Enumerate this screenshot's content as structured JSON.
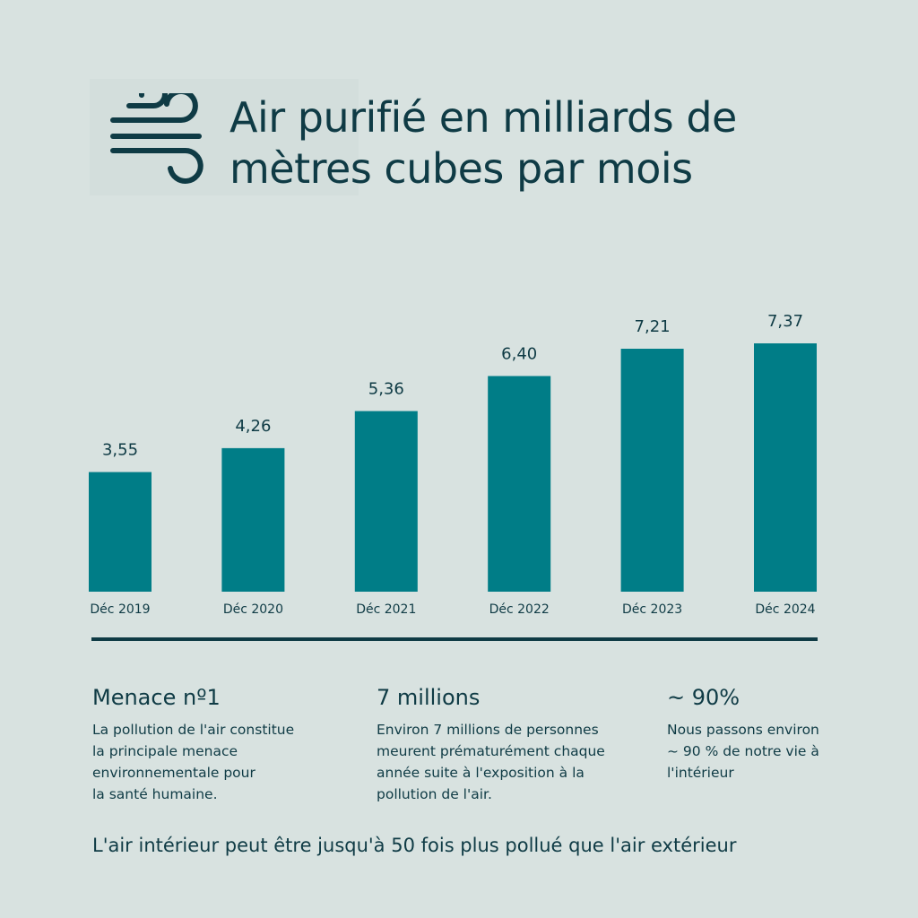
{
  "header": {
    "title_line1": "Air purifié en milliards de",
    "title_line2": "mètres cubes par mois",
    "icon": "wind-icon"
  },
  "chart_data": {
    "type": "bar",
    "title": "Air purifié en milliards de mètres cubes par mois",
    "categories": [
      "Déc 2019",
      "Déc 2020",
      "Déc 2021",
      "Déc 2022",
      "Déc 2023",
      "Déc 2024"
    ],
    "values": [
      3.55,
      4.26,
      5.36,
      6.4,
      7.21,
      7.37
    ],
    "value_labels": [
      "3,55",
      "4,26",
      "5,36",
      "6,40",
      "7,21",
      "7,37"
    ],
    "ylim": [
      0,
      7.37
    ],
    "grid": false,
    "legend": "none",
    "bar_color": "#007d87"
  },
  "stats": [
    {
      "heading": "Menace nº1",
      "lines": [
        "La pollution de l'air constitue",
        "la principale menace",
        "environnementale pour",
        "la santé humaine."
      ]
    },
    {
      "heading": "7 millions",
      "lines": [
        "Environ 7 millions de personnes",
        "meurent prématurément chaque",
        "année suite à l'exposition à la",
        "pollution de l'air."
      ]
    },
    {
      "heading": "~ 90%",
      "lines": [
        "Nous passons environ",
        "~ 90 % de notre vie à",
        "l'intérieur"
      ]
    }
  ],
  "footer_note": "L'air intérieur peut être jusqu'à 50 fois plus pollué que l'air extérieur",
  "colors": {
    "background": "#d8e2e0",
    "text": "#0f3b45",
    "bar": "#007d87"
  }
}
